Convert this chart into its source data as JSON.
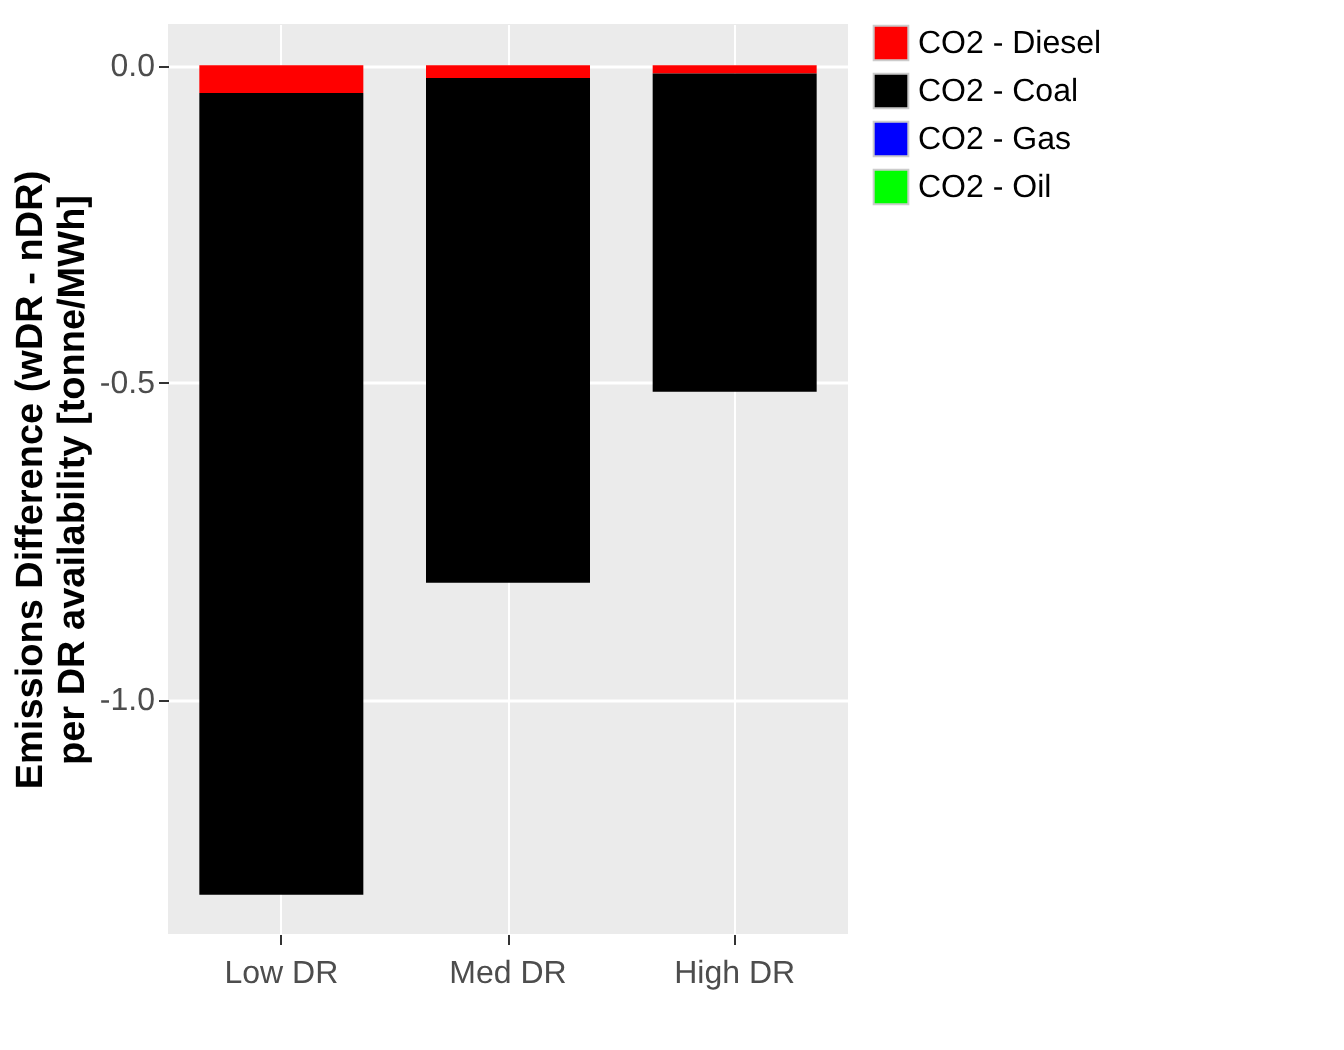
{
  "chart_data": {
    "type": "bar",
    "stacked": true,
    "ylabel": "Emissions Difference (wDR - nDR)\nper DR availability [tonne/MWh]",
    "categories": [
      "Low DR",
      "Med DR",
      "High DR"
    ],
    "series": [
      {
        "name": "CO2 - Diesel",
        "color": "#ff0000",
        "values": [
          -0.044,
          -0.02,
          -0.013
        ]
      },
      {
        "name": "CO2 - Coal",
        "color": "#000000",
        "values": [
          -1.264,
          -0.796,
          -0.502
        ]
      },
      {
        "name": "CO2 - Gas",
        "color": "#0000ff",
        "values": [
          null,
          null,
          null
        ]
      },
      {
        "name": "CO2 - Oil",
        "color": "#00ff00",
        "values": [
          null,
          null,
          null
        ]
      }
    ],
    "ylim": [
      -1.37,
      0.065
    ],
    "yticks": [
      {
        "value": 0,
        "label": "0.0"
      },
      {
        "value": -0.5,
        "label": "-0.5"
      },
      {
        "value": -1.0,
        "label": "-1.0"
      }
    ],
    "grid": true,
    "legend": "right"
  }
}
